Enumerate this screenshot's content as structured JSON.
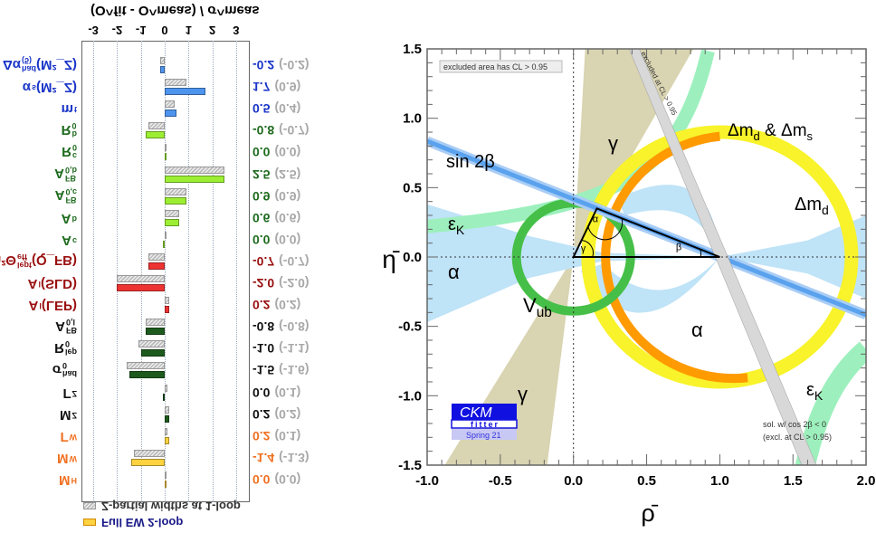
{
  "chart_data": [
    {
      "type": "bar",
      "orientation": "horizontal",
      "rendered_flipped_vertically": true,
      "title": "(O^fit - O^meas) / σ^meas",
      "xlim": [
        -3,
        3
      ],
      "xticks": [
        "-3",
        "-2",
        "-1",
        "0",
        "1",
        "2",
        "3"
      ],
      "legend": [
        {
          "label": "Full EW 2-loop",
          "color": "#ffd23f"
        },
        {
          "label": "Z-partial widths at 1-loop",
          "color": "#cccccc"
        }
      ],
      "rows": [
        {
          "main": "M",
          "sup": "",
          "sub": "H",
          "suffix": "",
          "value": 0.0,
          "value_text": "0.0",
          "partial": 0.0,
          "partial_text": "(0.0)",
          "label_color": "#f07020",
          "bar_color": "#ffd23f"
        },
        {
          "main": "M",
          "sup": "",
          "sub": "W",
          "suffix": "",
          "value": -1.4,
          "value_text": "-1.4",
          "partial": -1.3,
          "partial_text": "(-1.3)",
          "label_color": "#f07020",
          "bar_color": "#ffd23f"
        },
        {
          "main": "Γ",
          "sup": "",
          "sub": "W",
          "suffix": "",
          "value": 0.2,
          "value_text": "0.2",
          "partial": 0.1,
          "partial_text": "(0.1)",
          "label_color": "#f07020",
          "bar_color": "#ffd23f"
        },
        {
          "main": "M",
          "sup": "",
          "sub": "Z",
          "suffix": "",
          "value": 0.2,
          "value_text": "0.2",
          "partial": 0.2,
          "partial_text": "(0.2)",
          "label_color": "#111111",
          "bar_color": "#1d5a1d"
        },
        {
          "main": "Γ",
          "sup": "",
          "sub": "Z",
          "suffix": "",
          "value": -0.05,
          "value_text": "0.0",
          "partial": 0.1,
          "partial_text": "(0.1)",
          "label_color": "#111111",
          "bar_color": "#1d5a1d"
        },
        {
          "main": "σ",
          "sup": "had",
          "sub": "0",
          "suffix": "",
          "value": -1.5,
          "value_text": "-1.5",
          "partial": -1.6,
          "partial_text": "(-1.6)",
          "label_color": "#111111",
          "bar_color": "#1d5a1d"
        },
        {
          "main": "R",
          "sup": "lep",
          "sub": "0",
          "suffix": "",
          "value": -1.0,
          "value_text": "-1.0",
          "partial": -1.1,
          "partial_text": "(-1.1)",
          "label_color": "#111111",
          "bar_color": "#1d5a1d"
        },
        {
          "main": "A",
          "sup": "FB",
          "sub": "0,l",
          "suffix": "",
          "value": -0.8,
          "value_text": "-0.8",
          "partial": -0.8,
          "partial_text": "(-0.8)",
          "label_color": "#111111",
          "bar_color": "#1d5a1d"
        },
        {
          "main": "A",
          "sup": "",
          "sub": "l",
          "suffix": "(LEP)",
          "value": 0.2,
          "value_text": "0.2",
          "partial": 0.2,
          "partial_text": "(0.2)",
          "label_color": "#9a1010",
          "bar_color": "#ee3333"
        },
        {
          "main": "A",
          "sup": "",
          "sub": "l",
          "suffix": "(SLD)",
          "value": -2.0,
          "value_text": "-2.0",
          "partial": -2.0,
          "partial_text": "(-2.0)",
          "label_color": "#9a1010",
          "bar_color": "#ee3333"
        },
        {
          "main": "sin²Θ",
          "sup": "lept",
          "sub": "eff",
          "suffix": "(Q_FB)",
          "value": -0.7,
          "value_text": "-0.7",
          "partial": -0.7,
          "partial_text": "(-0.7)",
          "label_color": "#9a1010",
          "bar_color": "#ee3333"
        },
        {
          "main": "A",
          "sup": "",
          "sub": "c",
          "suffix": "",
          "value": -0.02,
          "value_text": "0.0",
          "partial": 0.0,
          "partial_text": "(0.0)",
          "label_color": "#1e6b1e",
          "bar_color": "#9cee33"
        },
        {
          "main": "A",
          "sup": "",
          "sub": "b",
          "suffix": "",
          "value": 0.6,
          "value_text": "0.6",
          "partial": 0.6,
          "partial_text": "(0.6)",
          "label_color": "#1e6b1e",
          "bar_color": "#9cee33"
        },
        {
          "main": "A",
          "sup": "FB",
          "sub": "0,c",
          "suffix": "",
          "value": 0.9,
          "value_text": "0.9",
          "partial": 0.9,
          "partial_text": "(0.9)",
          "label_color": "#1e6b1e",
          "bar_color": "#9cee33"
        },
        {
          "main": "A",
          "sup": "FB",
          "sub": "0,b",
          "suffix": "",
          "value": 2.5,
          "value_text": "2.5",
          "partial": 2.5,
          "partial_text": "(2.5)",
          "label_color": "#1e6b1e",
          "bar_color": "#9cee33"
        },
        {
          "main": "R",
          "sup": "c",
          "sub": "0",
          "suffix": "",
          "value": 0.02,
          "value_text": "0.0",
          "partial": 0.0,
          "partial_text": "(0.0)",
          "label_color": "#1e6b1e",
          "bar_color": "#9cee33"
        },
        {
          "main": "R",
          "sup": "b",
          "sub": "0",
          "suffix": "",
          "value": -0.8,
          "value_text": "-0.8",
          "partial": -0.7,
          "partial_text": "(-0.7)",
          "label_color": "#1e6b1e",
          "bar_color": "#9cee33"
        },
        {
          "main": "m",
          "sup": "",
          "sub": "t",
          "suffix": "",
          "value": 0.5,
          "value_text": "0.5",
          "partial": 0.4,
          "partial_text": "(0.4)",
          "label_color": "#1a35c8",
          "bar_color": "#4d94ee"
        },
        {
          "main": "α",
          "sup": "",
          "sub": "s",
          "suffix": "(M²_Z)",
          "value": 1.7,
          "value_text": "1.7",
          "partial": 0.9,
          "partial_text": "(0.9)",
          "label_color": "#1a35c8",
          "bar_color": "#4d94ee"
        },
        {
          "main": "Δα",
          "sup": "had",
          "sub": "(5)",
          "suffix": "(M²_Z)",
          "value": -0.2,
          "value_text": "-0.2",
          "partial": -0.2,
          "partial_text": "(-0.2)",
          "label_color": "#1a35c8",
          "bar_color": "#4d94ee"
        }
      ]
    },
    {
      "type": "constraint-plot",
      "xlabel": "ρ̄",
      "ylabel": "η̄",
      "xlim": [
        -1.0,
        2.0
      ],
      "ylim": [
        -1.5,
        1.5
      ],
      "xticks": [
        "-1.0",
        "-0.5",
        "0.0",
        "0.5",
        "1.0",
        "1.5",
        "2.0"
      ],
      "yticks": [
        "-1.5",
        "-1.0",
        "-0.5",
        "0.0",
        "0.5",
        "1.0",
        "1.5"
      ],
      "apex": {
        "rho": 0.16,
        "eta": 0.35
      },
      "constraints": [
        {
          "label": "sin 2β",
          "color": "#5aa2ee"
        },
        {
          "label": "ε",
          "sub": "K",
          "color": "#9df0bd"
        },
        {
          "label": "α",
          "color": "#bfe3f7"
        },
        {
          "label": "γ",
          "color": "#d9d4b1"
        },
        {
          "label": "V",
          "sub": "ub",
          "color": "#46bf48"
        },
        {
          "label": "Δm",
          "sub": "d",
          "color": "#f8f32a"
        },
        {
          "label": "Δm_d & Δm_s",
          "color": "#ff9a00"
        }
      ],
      "triangle_labels": {
        "alpha": "α",
        "beta": "β",
        "gamma": "γ"
      },
      "annotations": {
        "excluded_box": "excluded area has CL > 0.95",
        "excluded_band": "excluded at CL > 0.95",
        "cos_line1": "sol. w/ cos 2β < 0",
        "cos_line2": "(excl. at CL > 0.95)",
        "label_sin2b": "sin 2β",
        "label_eps": "ε",
        "label_eps_sub": "K",
        "label_alpha": "α",
        "label_gamma": "γ",
        "label_vub": "V",
        "label_vub_sub": "ub",
        "label_dmd": "Δm",
        "label_dmd_sub": "d",
        "label_dmds_a": "Δm",
        "label_dmds_sub1": "d",
        "label_dmds_mid": " & Δm",
        "label_dmds_sub2": "s"
      },
      "logo": {
        "line1": "CKM",
        "line2": "fitter",
        "line3": "Spring 21",
        "color": "#1010e0"
      }
    }
  ]
}
